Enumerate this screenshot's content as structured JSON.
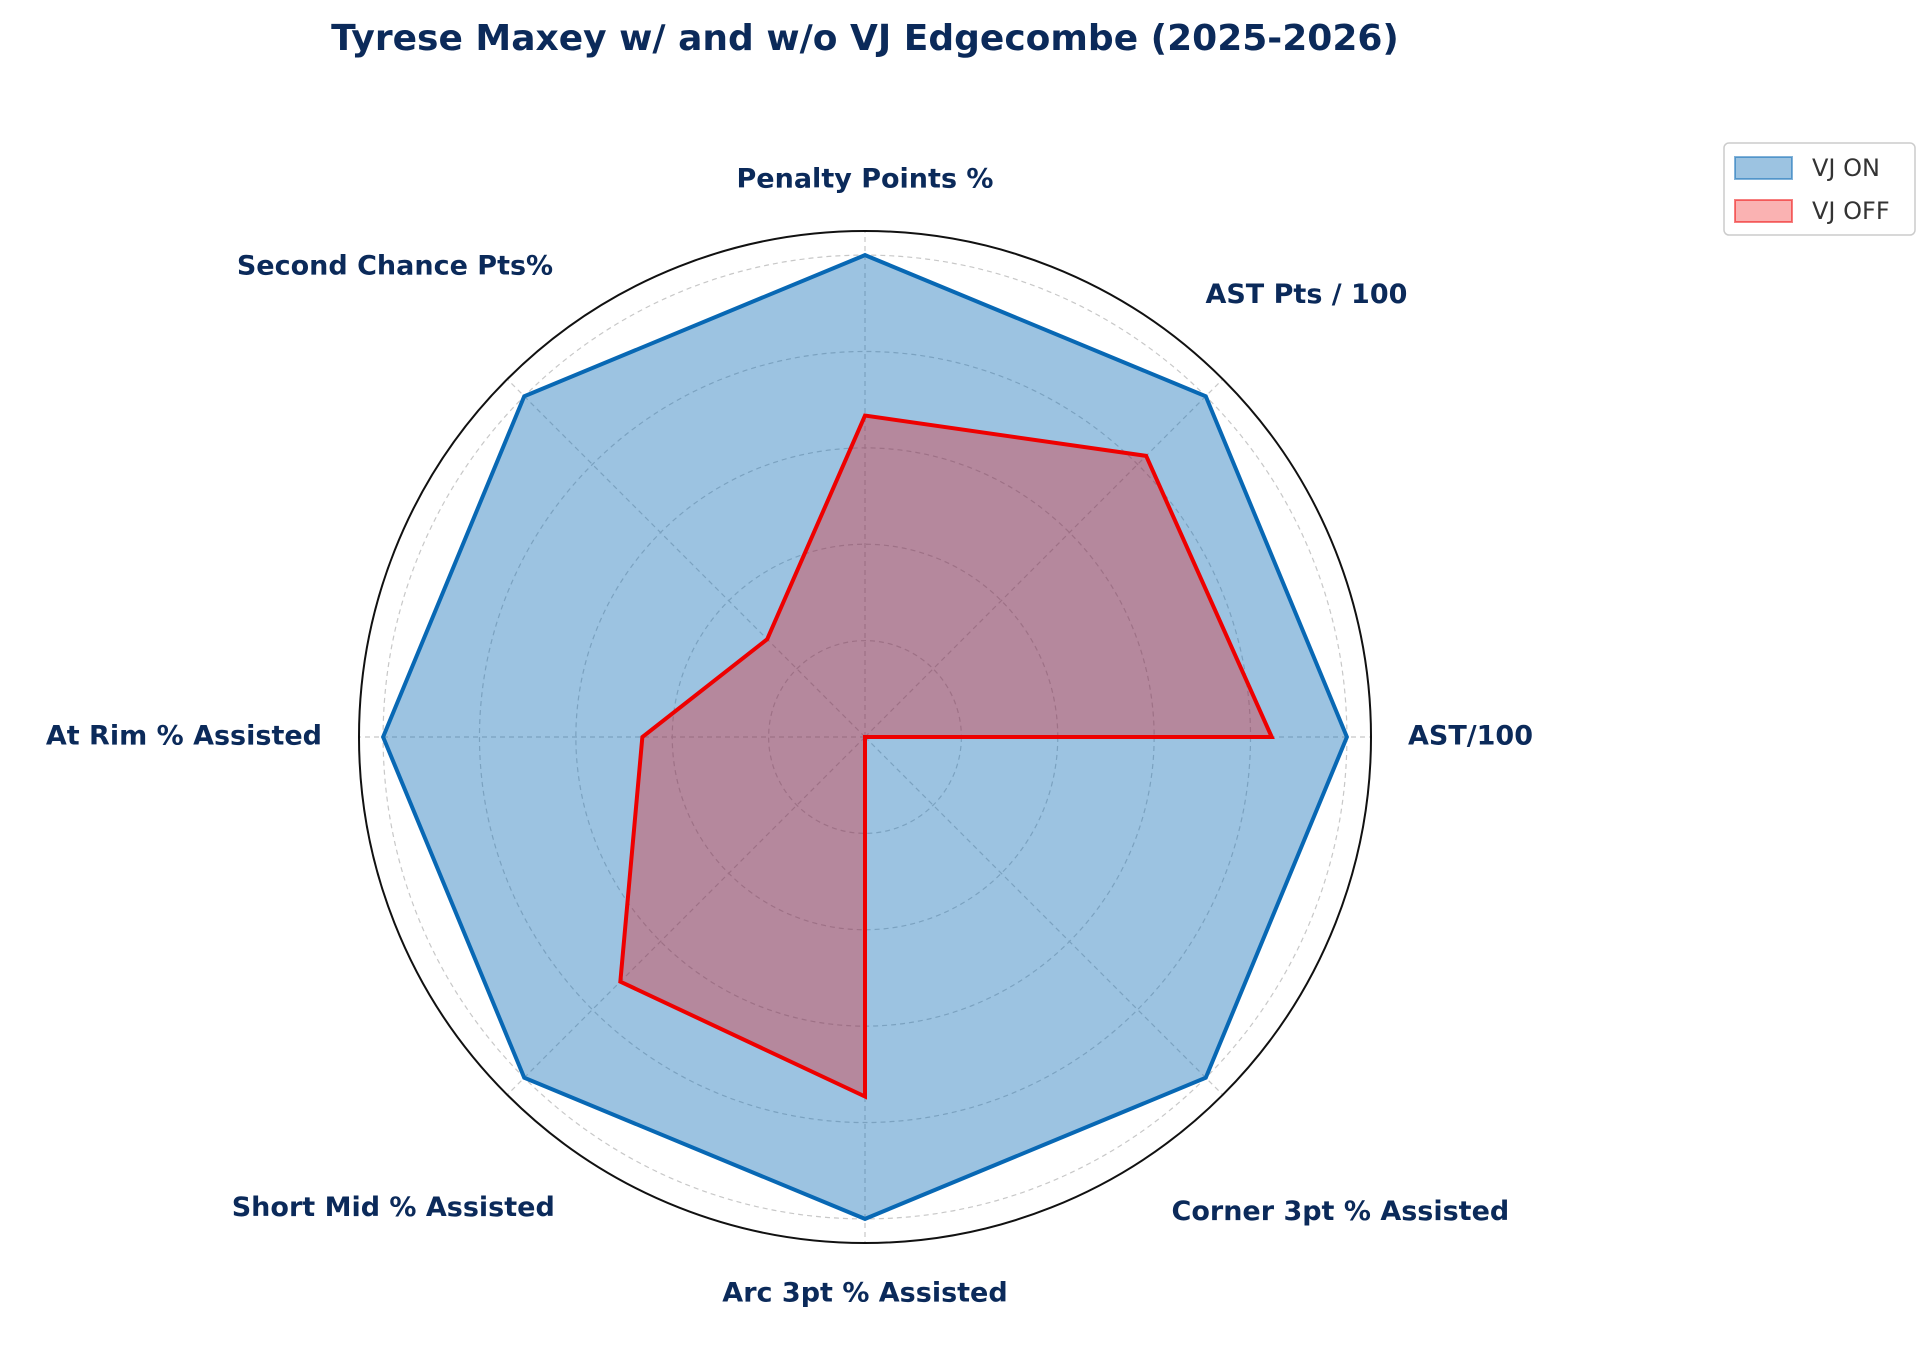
{
  "chart_data": {
    "type": "radar",
    "title": "Tyrese Maxey w/ and w/o VJ Edgecombe (2025-2026)",
    "categories": [
      "AST/100",
      "AST Pts / 100",
      "Penalty Points %",
      "Second Chance Pts%",
      "At Rim % Assisted",
      "Short Mid % Assisted",
      "Arc 3pt % Assisted",
      "Corner 3pt % Assisted"
    ],
    "series": [
      {
        "name": "VJ ON",
        "color": "#0868b4",
        "values": [
          1.0,
          1.0,
          1.0,
          1.0,
          1.0,
          1.0,
          1.0,
          1.0
        ]
      },
      {
        "name": "VJ OFF",
        "color": "#ee0000",
        "values": [
          0.844,
          0.825,
          0.667,
          0.287,
          0.462,
          0.718,
          0.746,
          0
        ]
      }
    ],
    "ylim": [
      0,
      1.05
    ],
    "yticks": [
      0.2,
      0.4,
      0.6,
      0.8,
      1.0
    ],
    "grid": true,
    "legend": "upper right"
  }
}
